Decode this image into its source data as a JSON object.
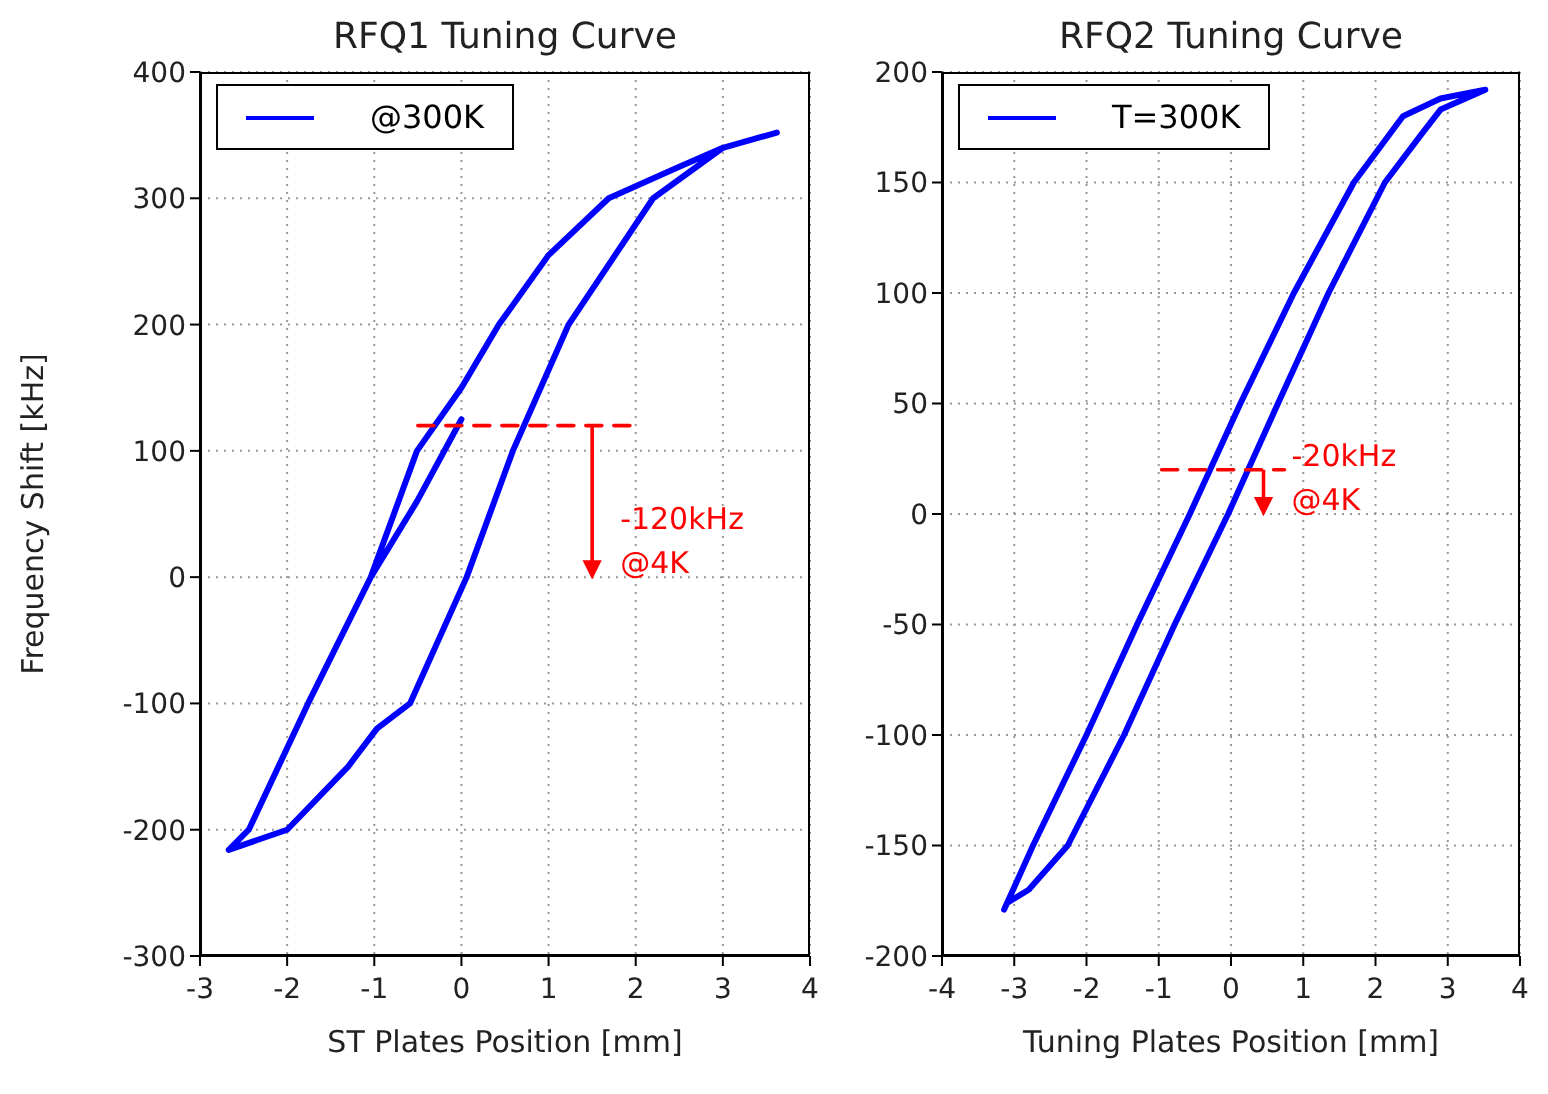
{
  "chart_data": [
    {
      "type": "line",
      "title": "RFQ1 Tuning Curve",
      "xlabel": "ST Plates Position [mm]",
      "ylabel": "Frequency Shift [kHz]",
      "xlim": [
        -3,
        4
      ],
      "xticks": [
        -3,
        -2,
        -1,
        0,
        1,
        2,
        3,
        4
      ],
      "ylim": [
        -300,
        400
      ],
      "yticks": [
        -300,
        -200,
        -100,
        0,
        100,
        200,
        300,
        400
      ],
      "grid": true,
      "legend": "top left",
      "marker": "none",
      "annotations": [
        {
          "text": "-120kHz\n@4K",
          "x": 1.5,
          "y": 120
        }
      ],
      "series": [
        {
          "name": "@300K",
          "color": "#0000ff",
          "x": [
            0,
            -0.51,
            -1.04,
            -1.76,
            -2.44,
            -2.67,
            -2.0,
            -1.3,
            -0.97,
            -0.59,
            0.06,
            0.59,
            1.23,
            2.2,
            3.0,
            3.62,
            3.0,
            2.5,
            1.69,
            1.0,
            0.43,
            0,
            -0.51,
            -1.04,
            -1.76,
            -2.44,
            -2.67
          ],
          "values": [
            125,
            60,
            0,
            -100,
            -200,
            -216,
            -200,
            -150,
            -120,
            -100,
            0,
            100,
            200,
            300,
            340,
            352,
            340,
            325,
            300,
            255,
            200,
            150,
            100,
            0,
            -100,
            -200,
            -216
          ]
        },
        {
          "type": "line",
          "color": "#ff0000",
          "line_style": "dashed",
          "x": [
            -0.5,
            2
          ],
          "values": [
            120,
            120
          ]
        }
      ]
    },
    {
      "type": "line",
      "title": "RFQ2 Tuning Curve",
      "xlabel": "Tuning Plates Position [mm]",
      "xlim": [
        -4,
        4
      ],
      "xticks": [
        -4,
        -3,
        -2,
        -1,
        0,
        1,
        2,
        3,
        4
      ],
      "ylim": [
        -200,
        200
      ],
      "yticks": [
        -200,
        -150,
        -100,
        -50,
        0,
        50,
        100,
        150,
        200
      ],
      "grid": true,
      "legend": "top left",
      "marker": "none",
      "annotations": [
        {
          "text": "-20kHz\n@4K",
          "x": 0.45,
          "y": 20
        }
      ],
      "series": [
        {
          "name": "T=300K",
          "color": "#0000ff",
          "x": [
            -3.14,
            -2.74,
            -2.0,
            -1.3,
            -0.57,
            0.13,
            0.87,
            1.7,
            2.38,
            2.9,
            3.52,
            2.9,
            2.64,
            2.13,
            1.35,
            0.65,
            -0.04,
            -0.78,
            -1.48,
            -2.26,
            -2.8,
            -3.1
          ],
          "values": [
            -179,
            -150,
            -100,
            -50,
            0,
            50,
            100,
            150,
            180,
            188,
            192,
            183,
            172,
            150,
            100,
            50,
            0,
            -50,
            -100,
            -150,
            -170,
            -176
          ]
        },
        {
          "type": "line",
          "color": "#ff0000",
          "line_style": "dashed",
          "x": [
            -0.96,
            0.74
          ],
          "values": [
            20,
            20
          ]
        }
      ]
    }
  ]
}
